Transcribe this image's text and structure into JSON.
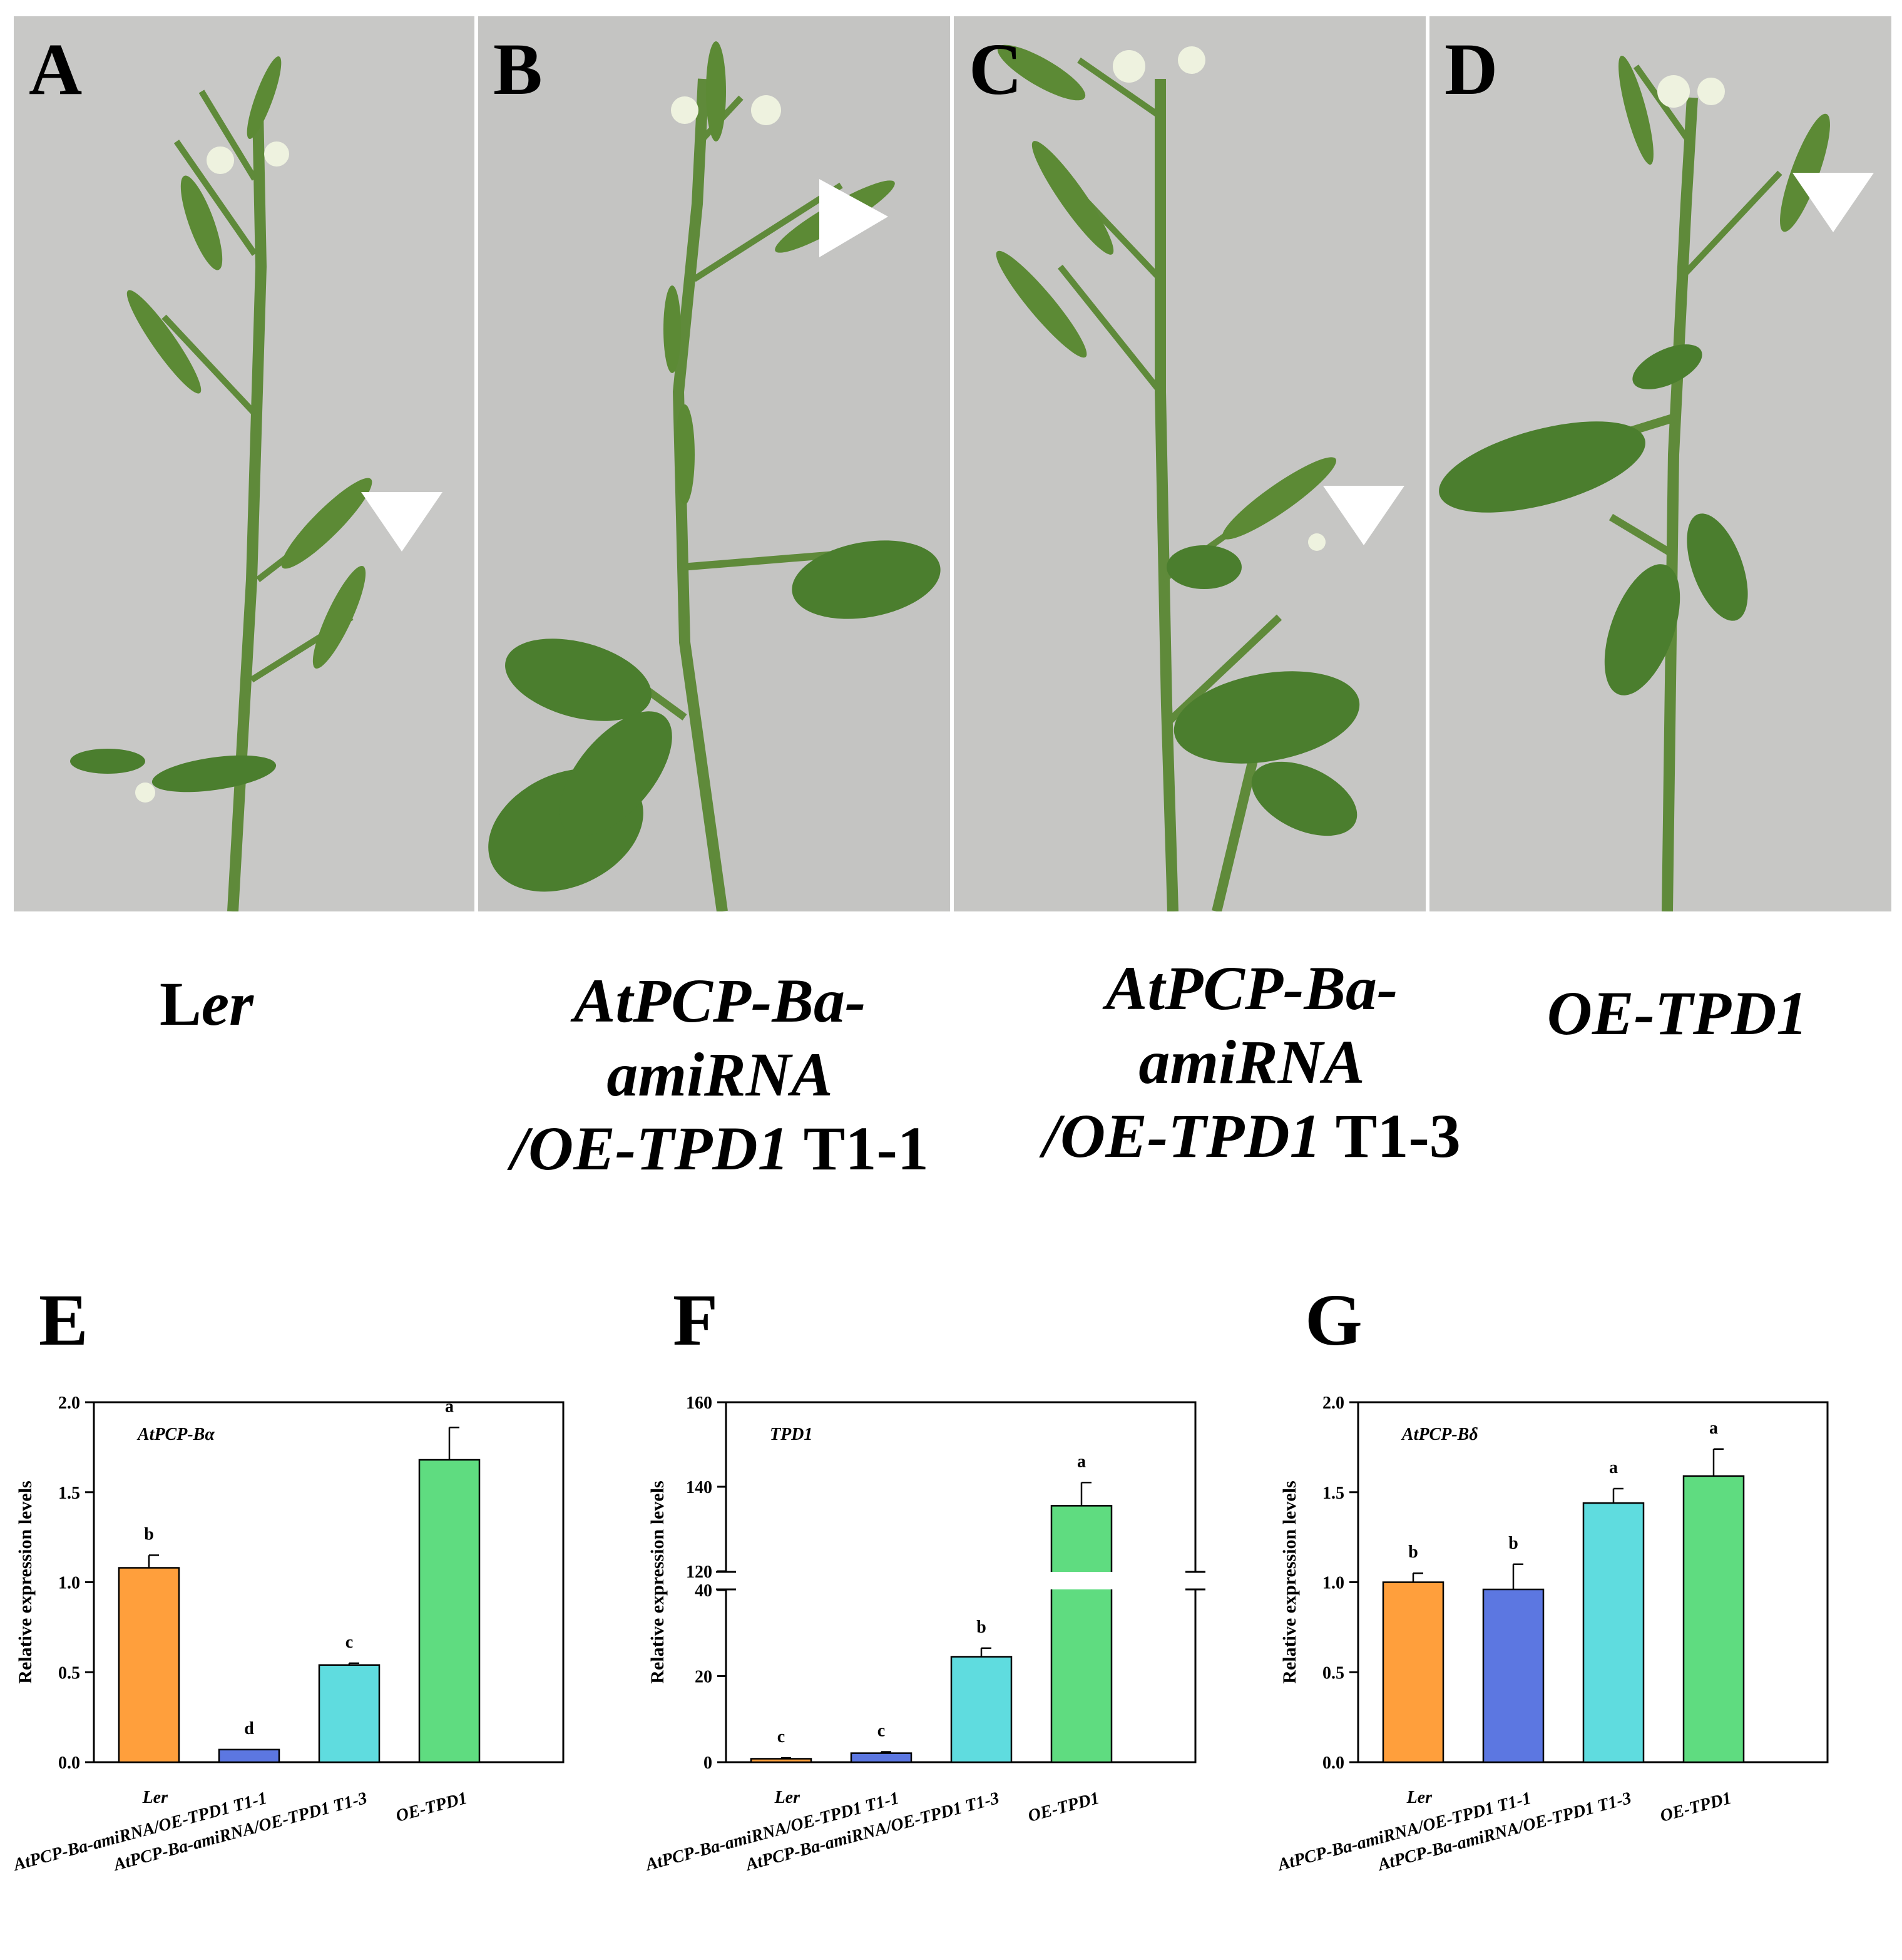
{
  "photo_panels": [
    {
      "letter": "A",
      "caption_lines": [
        [
          {
            "t": "L",
            "i": false
          },
          {
            "t": "er",
            "i": true
          }
        ]
      ]
    },
    {
      "letter": "B",
      "caption_lines": [
        [
          {
            "t": "AtPCP-Ba-",
            "i": true
          }
        ],
        [
          {
            "t": "amiRNA",
            "i": true
          }
        ],
        [
          {
            "t": "/OE-TPD1",
            "i": true
          },
          {
            "t": " T1-1",
            "i": false
          }
        ]
      ]
    },
    {
      "letter": "C",
      "caption_lines": [
        [
          {
            "t": "AtPCP-Ba-",
            "i": true
          }
        ],
        [
          {
            "t": "amiRNA",
            "i": true
          }
        ],
        [
          {
            "t": "/OE-TPD1",
            "i": true
          },
          {
            "t": " T1-3",
            "i": false
          }
        ]
      ]
    },
    {
      "letter": "D",
      "caption_lines": [
        [
          {
            "t": "OE-TPD1",
            "i": true
          }
        ]
      ]
    }
  ],
  "colors": {
    "ler": "#ff9f3c",
    "t1_1": "#5c77e1",
    "t1_3": "#5fdcdf",
    "oe_tpd1": "#5fdc80",
    "background_photo": "#c9c9c7",
    "stem": "#5f8a3a",
    "leaf": "#4b7e2e",
    "arrowhead": "#ffffff"
  },
  "chart_data": [
    {
      "type": "bar",
      "panel": "E",
      "annotation": "AtPCP-Bα",
      "ylabel": "Relative expression levels",
      "categories": [
        "Ler",
        "AtPCP-Ba-amiRNA/OE-TPD1 T1-1",
        "AtPCP-Ba-amiRNA/OE-TPD1 T1-3",
        "OE-TPD1"
      ],
      "values": [
        1.08,
        0.07,
        0.54,
        1.68
      ],
      "errors": [
        0.07,
        0.0,
        0.01,
        0.18
      ],
      "letters": [
        "b",
        "d",
        "c",
        "a"
      ],
      "ylim": [
        0,
        2.0
      ],
      "ticks": [
        "0.0",
        "0.5",
        "1.0",
        "1.5",
        "2.0"
      ]
    },
    {
      "type": "bar",
      "panel": "F",
      "annotation": "TPD1",
      "ylabel": "Relative expression levels",
      "categories": [
        "Ler",
        "AtPCP-Ba-amiRNA/OE-TPD1 T1-1",
        "AtPCP-Ba-amiRNA/OE-TPD1 T1-3",
        "OE-TPD1"
      ],
      "values": [
        0.8,
        2.1,
        24.5,
        135.5
      ],
      "errors": [
        0.2,
        0.3,
        2.0,
        5.5
      ],
      "letters": [
        "c",
        "c",
        "b",
        "a"
      ],
      "y_break": [
        40,
        120
      ],
      "ylim": [
        0,
        160
      ],
      "ticks": [
        "0",
        "20",
        "40",
        "120",
        "140",
        "160"
      ]
    },
    {
      "type": "bar",
      "panel": "G",
      "annotation": "AtPCP-Bδ",
      "ylabel": "Relative expression levels",
      "categories": [
        "Ler",
        "AtPCP-Ba-amiRNA/OE-TPD1 T1-1",
        "AtPCP-Ba-amiRNA/OE-TPD1 T1-3",
        "OE-TPD1"
      ],
      "values": [
        1.0,
        0.96,
        1.44,
        1.59
      ],
      "errors": [
        0.05,
        0.14,
        0.08,
        0.15
      ],
      "letters": [
        "b",
        "b",
        "a",
        "a"
      ],
      "ylim": [
        0,
        2.0
      ],
      "ticks": [
        "0.0",
        "0.5",
        "1.0",
        "1.5",
        "2.0"
      ]
    }
  ]
}
